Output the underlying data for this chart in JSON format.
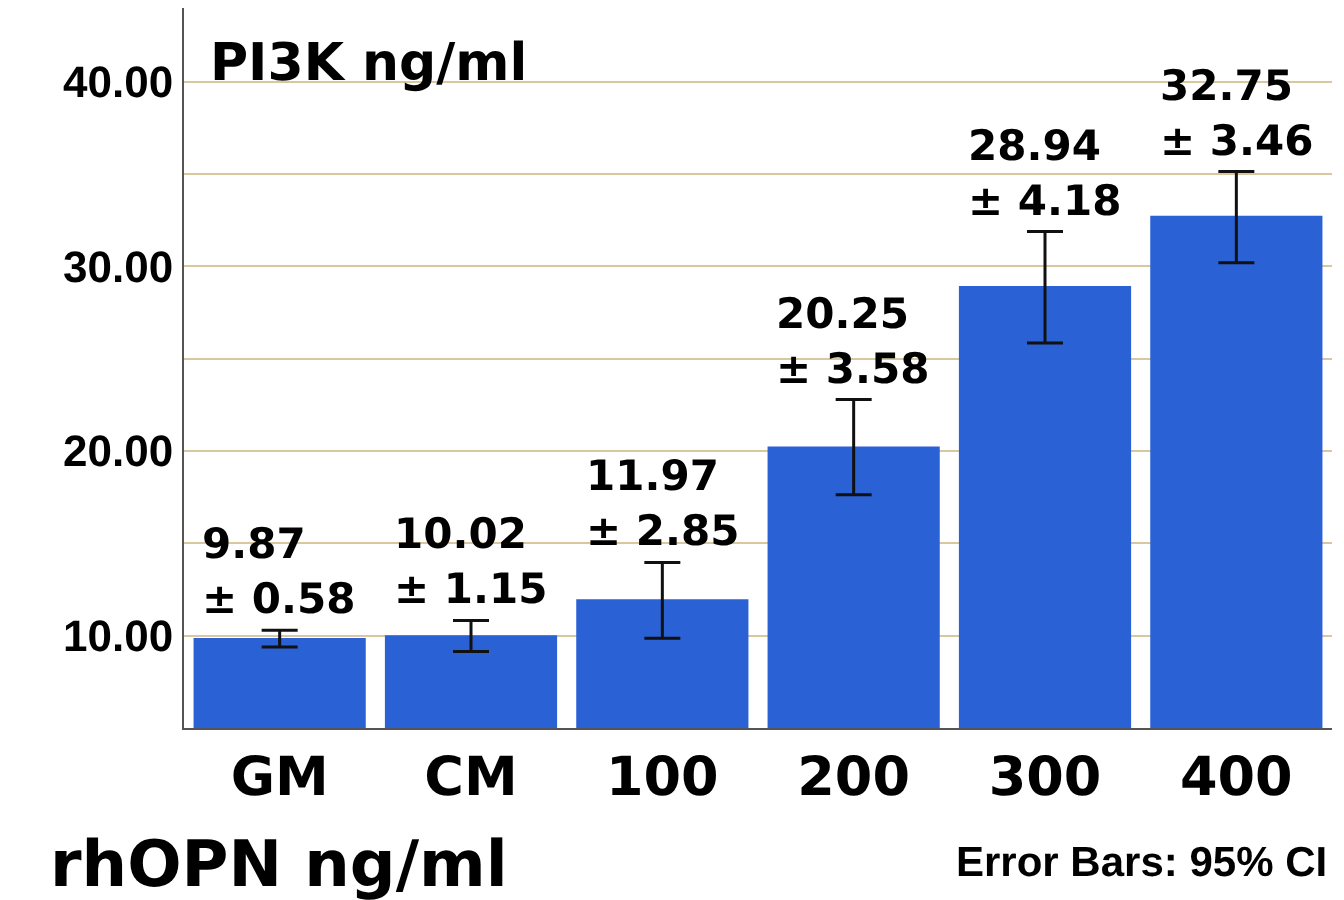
{
  "chart_data": {
    "type": "bar",
    "ylabel": "PI3K ng/ml",
    "xlabel": "rhOPN ng/ml",
    "annotations": [
      "Error Bars: 95% CI"
    ],
    "categories": [
      "GM",
      "CM",
      "100",
      "200",
      "300",
      "400"
    ],
    "values": [
      9.87,
      10.02,
      11.97,
      20.25,
      28.94,
      32.75
    ],
    "value_labels": [
      "9.87\n± 0.58",
      "10.02\n± 1.15",
      "11.97\n± 2.85",
      "20.25\n± 3.58",
      "28.94\n± 4.18",
      "32.75\n± 3.46"
    ],
    "errors": [
      [
        9.39,
        10.29
      ],
      [
        9.14,
        10.82
      ],
      [
        9.86,
        13.96
      ],
      [
        17.64,
        22.79
      ],
      [
        25.86,
        31.9
      ],
      [
        30.2,
        35.15
      ]
    ],
    "color": "#2a62d6",
    "ylim": [
      5,
      44
    ],
    "yticks": [
      {
        "value": 10,
        "label": "10.00"
      },
      {
        "value": 15,
        "label": null
      },
      {
        "value": 20,
        "label": "20.00"
      },
      {
        "value": 25,
        "label": null
      },
      {
        "value": 30,
        "label": "30.00"
      },
      {
        "value": 35,
        "label": null
      },
      {
        "value": 40,
        "label": "40.00"
      }
    ],
    "grid": true,
    "legend": false
  }
}
